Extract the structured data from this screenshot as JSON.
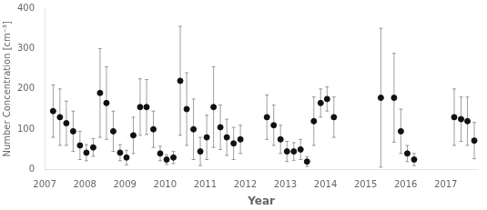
{
  "chart_data": {
    "type": "scatter",
    "xlabel": "Year",
    "ylabel": "Number Concentration [cm⁻³]",
    "xlim": [
      2007,
      2017.8
    ],
    "xticks": [
      2007,
      2008,
      2009,
      2010,
      2011,
      2012,
      2013,
      2014,
      2015,
      2016,
      2017
    ],
    "ylim": [
      0,
      400
    ],
    "yticks": [
      0,
      100,
      200,
      300,
      400
    ],
    "grid": false,
    "marker": "circle",
    "color": "#111111",
    "x": [
      2007.21,
      2007.38,
      2007.54,
      2007.71,
      2007.88,
      2008.04,
      2008.21,
      2008.38,
      2008.54,
      2008.71,
      2008.88,
      2009.04,
      2009.21,
      2009.38,
      2009.54,
      2009.71,
      2009.88,
      2010.04,
      2010.21,
      2010.38,
      2010.54,
      2010.71,
      2010.88,
      2011.04,
      2011.21,
      2011.38,
      2011.54,
      2011.71,
      2011.88,
      2012.54,
      2012.71,
      2012.88,
      2013.04,
      2013.21,
      2013.38,
      2013.54,
      2013.71,
      2013.88,
      2014.04,
      2014.21,
      2015.38,
      2015.71,
      2015.88,
      2016.04,
      2016.21,
      2017.21,
      2017.38,
      2017.54,
      2017.71
    ],
    "values": [
      145,
      130,
      115,
      95,
      60,
      42,
      55,
      190,
      165,
      95,
      42,
      30,
      85,
      155,
      155,
      100,
      40,
      25,
      30,
      220,
      150,
      100,
      45,
      80,
      155,
      105,
      80,
      65,
      75,
      130,
      110,
      75,
      45,
      45,
      50,
      20,
      120,
      165,
      175,
      130,
      178,
      178,
      95,
      40,
      25,
      130,
      125,
      120,
      72
    ],
    "yerr": [
      65,
      70,
      55,
      50,
      35,
      20,
      22,
      110,
      90,
      50,
      20,
      18,
      45,
      70,
      68,
      45,
      18,
      12,
      15,
      135,
      90,
      75,
      35,
      55,
      100,
      55,
      45,
      40,
      35,
      55,
      50,
      35,
      25,
      22,
      25,
      12,
      60,
      35,
      30,
      50,
      172,
      110,
      55,
      20,
      15,
      70,
      55,
      60,
      45
    ]
  }
}
